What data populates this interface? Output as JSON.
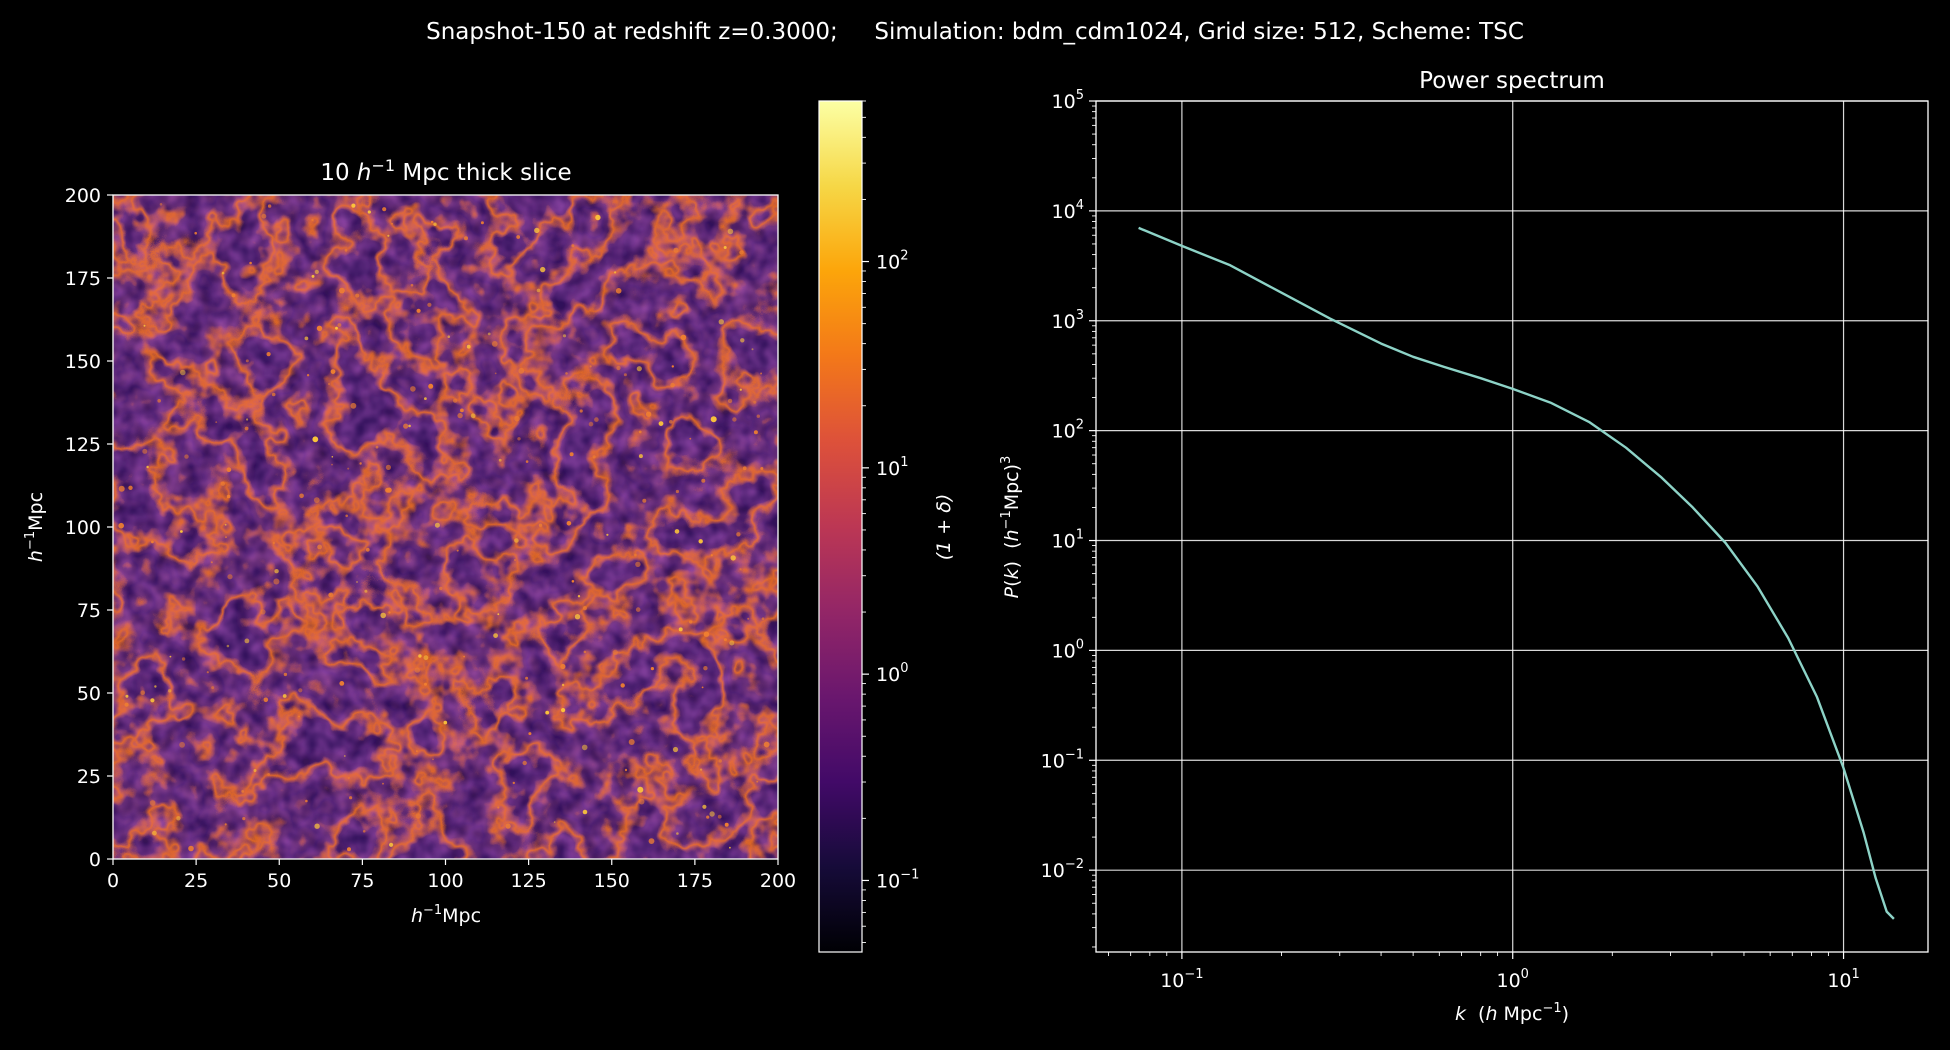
{
  "figure": {
    "suptitle": "Snapshot-150 at redshift z=0.3000;     Simulation: bdm_cdm1024, Grid size: 512, Scheme: TSC",
    "background": "#000000",
    "foreground": "#ffffff"
  },
  "chart_data": [
    {
      "type": "heatmap",
      "title_prefix": "10 ",
      "title_italic": "h",
      "title_sup": "−1",
      "title_suffix": " Mpc thick slice",
      "xlabel_italic": "h",
      "xlabel_sup": "−1",
      "xlabel_suffix": "Mpc",
      "ylabel_italic": "h",
      "ylabel_sup": "−1",
      "ylabel_suffix": "Mpc",
      "xlim": [
        0,
        200
      ],
      "ylim": [
        0,
        200
      ],
      "xticks": [
        "0",
        "25",
        "50",
        "75",
        "100",
        "125",
        "150",
        "175",
        "200"
      ],
      "yticks": [
        "0",
        "25",
        "50",
        "75",
        "100",
        "125",
        "150",
        "175",
        "200"
      ],
      "colormap": "inferno",
      "colorbar": {
        "label": "(1 + δ)",
        "scale": "log",
        "range": [
          0.045,
          600
        ],
        "tick_values": [
          0.1,
          1,
          10,
          100
        ],
        "tick_base": "10",
        "tick_exps": [
          "−1",
          "0",
          "1",
          "2"
        ]
      },
      "grid": false
    },
    {
      "type": "line",
      "title": "Power spectrum",
      "xlabel_italic": "k",
      "xlabel_mid": "  (",
      "xlabel_italic2": "h",
      "xlabel_tail": " Mpc",
      "xlabel_sup": "−1",
      "xlabel_close": ")",
      "ylabel_italic": "P",
      "ylabel_text": "(",
      "ylabel_italic2": "k",
      "ylabel_close": ")  (",
      "ylabel_italic3": "h",
      "ylabel_sup": "−1",
      "ylabel_unit": "Mpc)",
      "ylabel_sup2": "3",
      "xscale": "log",
      "yscale": "log",
      "xlim": [
        0.055,
        18
      ],
      "ylim": [
        0.0018,
        100000
      ],
      "xticks": [
        {
          "v": 0.1,
          "base": "10",
          "exp": "−1"
        },
        {
          "v": 1,
          "base": "10",
          "exp": "0"
        },
        {
          "v": 10,
          "base": "10",
          "exp": "1"
        }
      ],
      "yticks": [
        {
          "v": 0.01,
          "base": "10",
          "exp": "−2"
        },
        {
          "v": 0.1,
          "base": "10",
          "exp": "−1"
        },
        {
          "v": 1,
          "base": "10",
          "exp": "0"
        },
        {
          "v": 10,
          "base": "10",
          "exp": "1"
        },
        {
          "v": 100,
          "base": "10",
          "exp": "2"
        },
        {
          "v": 1000,
          "base": "10",
          "exp": "3"
        },
        {
          "v": 10000,
          "base": "10",
          "exp": "4"
        },
        {
          "v": 100000,
          "base": "10",
          "exp": "5"
        }
      ],
      "grid": true,
      "line_color": "#8dd3c7",
      "series": [
        {
          "x": [
            0.074,
            0.1,
            0.14,
            0.2,
            0.28,
            0.4,
            0.5,
            0.62,
            0.8,
            1.0,
            1.3,
            1.7,
            2.2,
            2.8,
            3.5,
            4.4,
            5.5,
            6.8,
            8.3,
            10.0,
            11.5,
            12.5,
            13.5,
            14.2
          ],
          "y": [
            7000,
            4800,
            3200,
            1800,
            1050,
            620,
            470,
            380,
            300,
            240,
            180,
            120,
            70,
            38,
            20,
            9.5,
            3.8,
            1.3,
            0.38,
            0.085,
            0.022,
            0.0085,
            0.0042,
            0.0036
          ]
        }
      ]
    }
  ]
}
